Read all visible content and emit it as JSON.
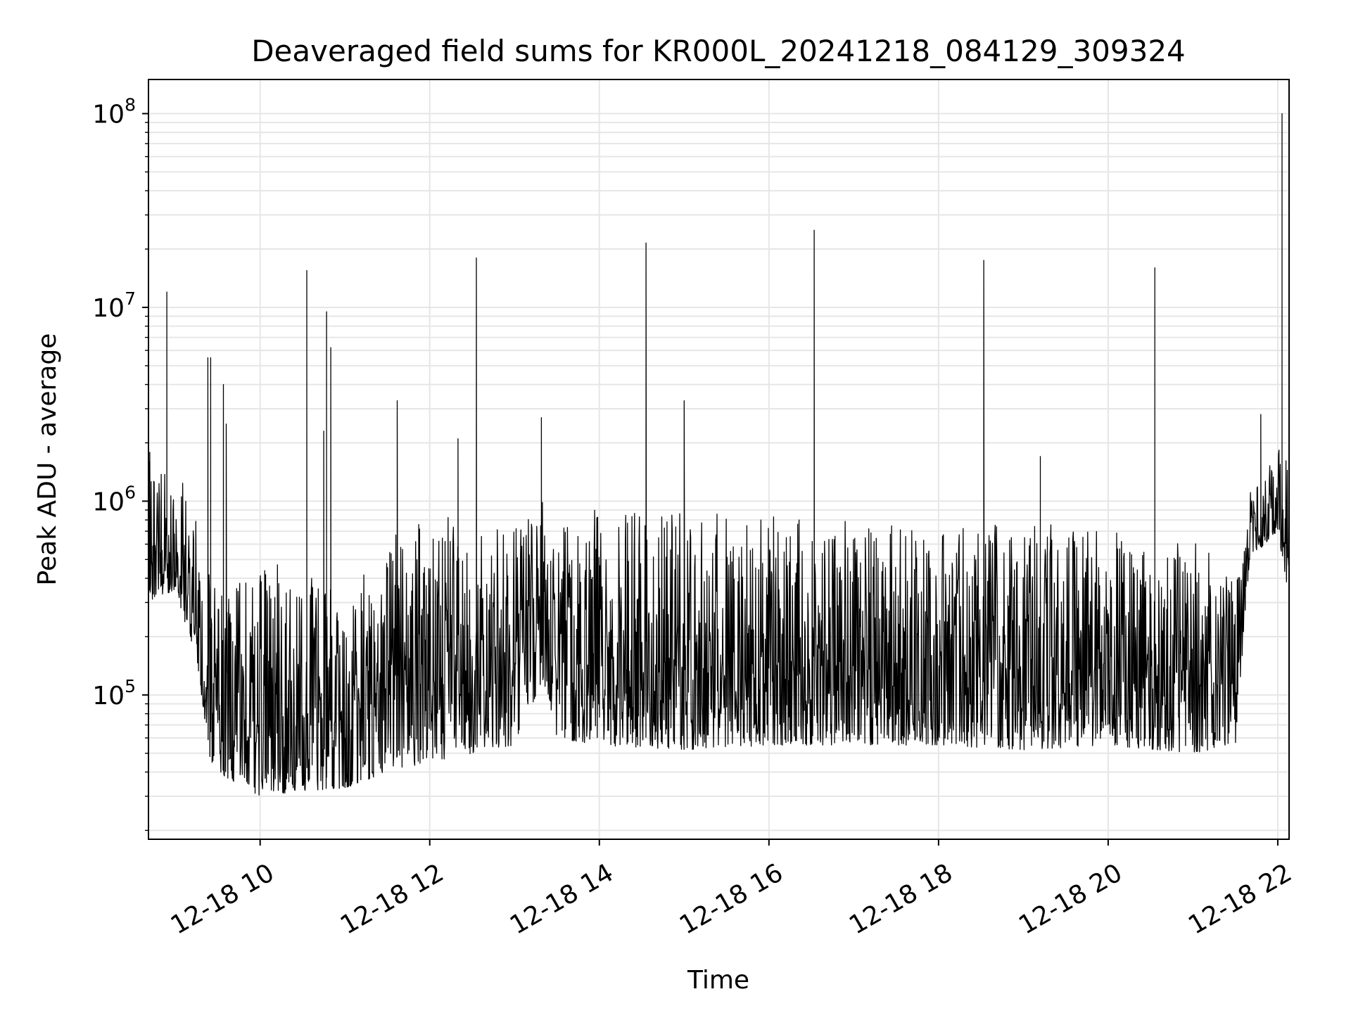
{
  "chart_data": {
    "type": "line",
    "title": "Deaveraged field sums for KR000L_20241218_084129_309324",
    "xlabel": "Time",
    "ylabel": "Peak ADU - average",
    "y_scale": "log",
    "ylim": [
      18000,
      150000000
    ],
    "xlim": [
      "2024-12-18 08:41",
      "2024-12-18 22:08"
    ],
    "grid": true,
    "legend": "none",
    "line_color": "#000000",
    "x_ticks": [
      {
        "value": "2024-12-18 10:00",
        "label": "12-18 10"
      },
      {
        "value": "2024-12-18 12:00",
        "label": "12-18 12"
      },
      {
        "value": "2024-12-18 14:00",
        "label": "12-18 14"
      },
      {
        "value": "2024-12-18 16:00",
        "label": "12-18 16"
      },
      {
        "value": "2024-12-18 18:00",
        "label": "12-18 18"
      },
      {
        "value": "2024-12-18 20:00",
        "label": "12-18 20"
      },
      {
        "value": "2024-12-18 22:00",
        "label": "12-18 22"
      }
    ],
    "y_ticks": [
      {
        "value": 100000,
        "base": "10",
        "exp": "5"
      },
      {
        "value": 1000000,
        "base": "10",
        "exp": "6"
      },
      {
        "value": 10000000,
        "base": "10",
        "exp": "7"
      },
      {
        "value": 100000000,
        "base": "10",
        "exp": "8"
      }
    ],
    "series": [
      {
        "envelope": [
          {
            "x": "2024-12-18 08:41",
            "low": 300000,
            "high": 1800000
          },
          {
            "x": "2024-12-18 09:00",
            "low": 350000,
            "high": 1600000
          },
          {
            "x": "2024-12-18 09:15",
            "low": 150000,
            "high": 800000
          },
          {
            "x": "2024-12-18 09:25",
            "low": 45000,
            "high": 400000
          },
          {
            "x": "2024-12-18 09:35",
            "low": 38000,
            "high": 450000
          },
          {
            "x": "2024-12-18 10:00",
            "low": 30000,
            "high": 450000
          },
          {
            "x": "2024-12-18 10:30",
            "low": 32000,
            "high": 500000
          },
          {
            "x": "2024-12-18 11:00",
            "low": 33000,
            "high": 300000
          },
          {
            "x": "2024-12-18 11:30",
            "low": 40000,
            "high": 650000
          },
          {
            "x": "2024-12-18 12:00",
            "low": 45000,
            "high": 800000
          },
          {
            "x": "2024-12-18 12:30",
            "low": 50000,
            "high": 900000
          },
          {
            "x": "2024-12-18 13:00",
            "low": 55000,
            "high": 900000
          },
          {
            "x": "2024-12-18 13:20",
            "low": 120000,
            "high": 1000000
          },
          {
            "x": "2024-12-18 13:30",
            "low": 60000,
            "high": 900000
          },
          {
            "x": "2024-12-18 14:00",
            "low": 55000,
            "high": 900000
          },
          {
            "x": "2024-12-18 15:00",
            "low": 52000,
            "high": 900000
          },
          {
            "x": "2024-12-18 16:00",
            "low": 55000,
            "high": 850000
          },
          {
            "x": "2024-12-18 17:00",
            "low": 55000,
            "high": 800000
          },
          {
            "x": "2024-12-18 18:00",
            "low": 55000,
            "high": 700000
          },
          {
            "x": "2024-12-18 19:00",
            "low": 52000,
            "high": 800000
          },
          {
            "x": "2024-12-18 20:00",
            "low": 55000,
            "high": 700000
          },
          {
            "x": "2024-12-18 21:00",
            "low": 50000,
            "high": 650000
          },
          {
            "x": "2024-12-18 21:30",
            "low": 55000,
            "high": 500000
          },
          {
            "x": "2024-12-18 21:40",
            "low": 500000,
            "high": 1200000
          },
          {
            "x": "2024-12-18 22:00",
            "low": 700000,
            "high": 1900000
          },
          {
            "x": "2024-12-18 22:08",
            "low": 300000,
            "high": 1700000
          }
        ],
        "spikes": [
          {
            "x": "2024-12-18 08:54",
            "y": 12000000
          },
          {
            "x": "2024-12-18 09:23",
            "y": 5500000
          },
          {
            "x": "2024-12-18 09:25",
            "y": 5500000
          },
          {
            "x": "2024-12-18 09:34",
            "y": 4000000
          },
          {
            "x": "2024-12-18 09:36",
            "y": 2500000
          },
          {
            "x": "2024-12-18 10:33",
            "y": 15500000
          },
          {
            "x": "2024-12-18 10:45",
            "y": 2300000
          },
          {
            "x": "2024-12-18 10:47",
            "y": 9500000
          },
          {
            "x": "2024-12-18 10:50",
            "y": 6200000
          },
          {
            "x": "2024-12-18 11:37",
            "y": 3300000
          },
          {
            "x": "2024-12-18 12:20",
            "y": 2100000
          },
          {
            "x": "2024-12-18 12:33",
            "y": 18000000
          },
          {
            "x": "2024-12-18 13:19",
            "y": 2700000
          },
          {
            "x": "2024-12-18 14:33",
            "y": 21500000
          },
          {
            "x": "2024-12-18 15:00",
            "y": 3300000
          },
          {
            "x": "2024-12-18 16:32",
            "y": 25000000
          },
          {
            "x": "2024-12-18 18:32",
            "y": 17500000
          },
          {
            "x": "2024-12-18 19:12",
            "y": 1700000
          },
          {
            "x": "2024-12-18 20:33",
            "y": 16000000
          },
          {
            "x": "2024-12-18 21:48",
            "y": 2800000
          },
          {
            "x": "2024-12-18 22:03",
            "y": 100000000
          }
        ]
      }
    ]
  }
}
